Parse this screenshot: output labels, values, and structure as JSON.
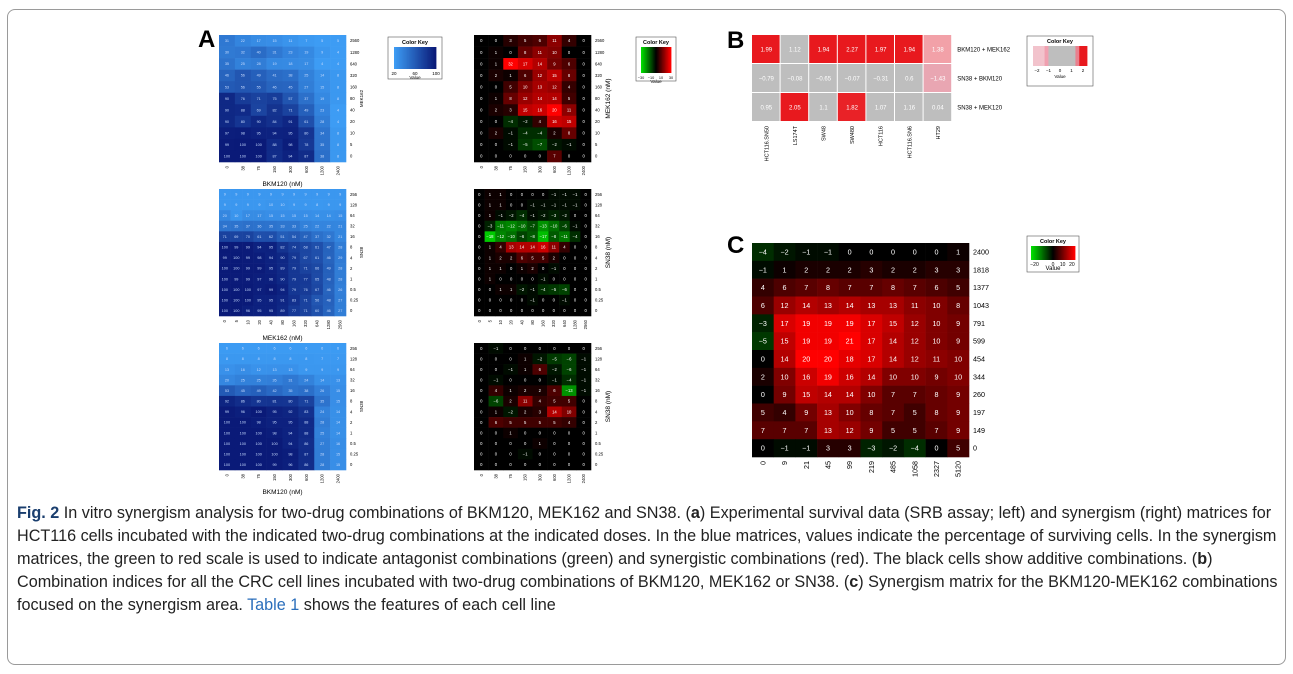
{
  "panels": {
    "A": "A",
    "B": "B",
    "C": "C"
  },
  "colors": {
    "blue_light": "#3d9cf4",
    "blue_dark": "#0a1a78",
    "red": "#ff0000",
    "green": "#00e000",
    "black": "#000000",
    "gray": "#bebebe",
    "pink": "#f0a0a8",
    "caption_label": "#1a3e6e",
    "link": "#2a6ebb"
  },
  "color_key_title": "Color Key",
  "value_label": "Value",
  "panelA": {
    "blue_key_ticks": [
      "20",
      "60",
      "100"
    ],
    "synergy_key_ticks": [
      "−30",
      "−10",
      "10",
      "30"
    ],
    "matrices": [
      {
        "survival_ylabel": "MEK162",
        "survival_xlabel": "BKM120 (nM)",
        "synergy_ylabel": "MEK162 (nM)",
        "synergy_xlabel": "",
        "row_labels": [
          "2560",
          "1280",
          "640",
          "320",
          "160",
          "80",
          "40",
          "20",
          "10",
          "5",
          "0"
        ],
        "col_labels": [
          "0",
          "38",
          "75",
          "150",
          "300",
          "600",
          "1200",
          "2400"
        ],
        "survival": [
          [
            31,
            22,
            17,
            15,
            11,
            7,
            5,
            5
          ],
          [
            30,
            32,
            40,
            31,
            23,
            19,
            9,
            4
          ],
          [
            35,
            25,
            28,
            19,
            18,
            17,
            4,
            4
          ],
          [
            46,
            56,
            49,
            41,
            38,
            25,
            14,
            8
          ],
          [
            53,
            56,
            55,
            46,
            45,
            27,
            15,
            8
          ],
          [
            90,
            76,
            71,
            75,
            57,
            37,
            19,
            8
          ],
          [
            90,
            88,
            69,
            82,
            71,
            49,
            23,
            4
          ],
          [
            90,
            80,
            90,
            84,
            91,
            61,
            28,
            4
          ],
          [
            97,
            98,
            95,
            94,
            95,
            80,
            34,
            8
          ],
          [
            99,
            100,
            100,
            88,
            98,
            78,
            35,
            8
          ],
          [
            100,
            100,
            100,
            87,
            94,
            87,
            38,
            8
          ]
        ],
        "synergy": [
          [
            0,
            0,
            3,
            5,
            6,
            11,
            4,
            0
          ],
          [
            0,
            1,
            0,
            8,
            11,
            10,
            0,
            0
          ],
          [
            0,
            1,
            32,
            17,
            14,
            9,
            6,
            0
          ],
          [
            0,
            2,
            1,
            6,
            12,
            15,
            8,
            0
          ],
          [
            0,
            0,
            5,
            10,
            13,
            12,
            4,
            0
          ],
          [
            0,
            1,
            8,
            12,
            14,
            14,
            5,
            0
          ],
          [
            0,
            2,
            3,
            15,
            16,
            20,
            11,
            0
          ],
          [
            0,
            0,
            -4,
            -2,
            4,
            16,
            15,
            0
          ],
          [
            0,
            2,
            -1,
            -4,
            -4,
            2,
            8,
            0
          ],
          [
            0,
            0,
            -1,
            -5,
            -7,
            -2,
            -1,
            0
          ],
          [
            0,
            0,
            0,
            0,
            0,
            7,
            0,
            0
          ]
        ]
      },
      {
        "survival_ylabel": "SN38",
        "survival_xlabel": "MEK162 (nM)",
        "synergy_ylabel": "SN38 (nM)",
        "synergy_xlabel": "",
        "row_labels": [
          "256",
          "128",
          "64",
          "32",
          "16",
          "8",
          "4",
          "2",
          "1",
          "0.5",
          "0.25",
          "0"
        ],
        "col_labels": [
          "0",
          "5",
          "10",
          "20",
          "40",
          "80",
          "160",
          "320",
          "640",
          "1280",
          "2560"
        ],
        "survival": [
          [
            9,
            9,
            9,
            9,
            9,
            9,
            9,
            9,
            9,
            9,
            9
          ],
          [
            9,
            9,
            9,
            9,
            10,
            10,
            9,
            9,
            8,
            9,
            9
          ],
          [
            20,
            10,
            17,
            17,
            15,
            15,
            15,
            15,
            14,
            14,
            15
          ],
          [
            34,
            35,
            37,
            36,
            35,
            33,
            33,
            25,
            22,
            22,
            21
          ],
          [
            71,
            69,
            70,
            61,
            62,
            51,
            54,
            47,
            37,
            32,
            21
          ],
          [
            100,
            99,
            99,
            94,
            95,
            82,
            74,
            68,
            61,
            47,
            28
          ],
          [
            99,
            100,
            99,
            98,
            94,
            90,
            79,
            67,
            61,
            46,
            29
          ],
          [
            100,
            100,
            99,
            99,
            95,
            89,
            79,
            71,
            66,
            49,
            28
          ],
          [
            100,
            99,
            99,
            97,
            96,
            90,
            79,
            77,
            65,
            48,
            28
          ],
          [
            100,
            100,
            100,
            97,
            99,
            94,
            79,
            76,
            67,
            46,
            26
          ],
          [
            100,
            100,
            100,
            95,
            95,
            91,
            83,
            71,
            56,
            48,
            27
          ],
          [
            100,
            100,
            96,
            95,
            95,
            89,
            77,
            71,
            60,
            46,
            27
          ]
        ],
        "synergy": [
          [
            0,
            1,
            1,
            0,
            0,
            0,
            0,
            -1,
            -1,
            -1,
            0
          ],
          [
            0,
            1,
            1,
            0,
            0,
            -1,
            -1,
            -1,
            -1,
            -1,
            0
          ],
          [
            0,
            1,
            -1,
            -2,
            -4,
            -1,
            -2,
            -3,
            -2,
            0,
            0
          ],
          [
            0,
            -3,
            -11,
            -12,
            -10,
            -7,
            -13,
            -10,
            -6,
            -1,
            0
          ],
          [
            0,
            -18,
            -12,
            -10,
            -6,
            -8,
            -17,
            -8,
            -11,
            -4,
            0
          ],
          [
            0,
            1,
            4,
            13,
            14,
            14,
            16,
            11,
            4,
            0,
            0
          ],
          [
            0,
            1,
            2,
            2,
            6,
            5,
            5,
            2,
            0,
            0,
            0
          ],
          [
            0,
            1,
            1,
            0,
            1,
            2,
            0,
            -1,
            0,
            0,
            0
          ],
          [
            0,
            1,
            0,
            0,
            0,
            0,
            -1,
            0,
            0,
            0,
            0
          ],
          [
            0,
            0,
            1,
            1,
            -2,
            -1,
            -4,
            -5,
            -6,
            0,
            0
          ],
          [
            0,
            0,
            0,
            0,
            0,
            -1,
            0,
            0,
            -1,
            0,
            0
          ],
          [
            0,
            0,
            0,
            0,
            0,
            0,
            0,
            0,
            0,
            0,
            0
          ]
        ]
      },
      {
        "survival_ylabel": "SN38",
        "survival_xlabel": "BKM120 (nM)",
        "synergy_ylabel": "SN38 (nM)",
        "synergy_xlabel": "",
        "row_labels": [
          "256",
          "128",
          "64",
          "32",
          "16",
          "8",
          "4",
          "2",
          "1",
          "0.5",
          "0.25",
          "0"
        ],
        "col_labels": [
          "0",
          "38",
          "75",
          "150",
          "300",
          "600",
          "1200",
          "2400"
        ],
        "survival": [
          [
            6,
            6,
            6,
            6,
            6,
            6,
            6,
            6
          ],
          [
            8,
            8,
            8,
            8,
            8,
            8,
            7,
            7
          ],
          [
            13,
            16,
            12,
            13,
            13,
            9,
            9,
            9
          ],
          [
            20,
            25,
            25,
            26,
            31,
            24,
            14,
            13
          ],
          [
            53,
            45,
            49,
            42,
            35,
            38,
            26,
            15
          ],
          [
            92,
            86,
            80,
            81,
            80,
            71,
            35,
            15
          ],
          [
            99,
            96,
            100,
            95,
            92,
            83,
            24,
            14
          ],
          [
            100,
            100,
            98,
            95,
            95,
            88,
            28,
            14
          ],
          [
            100,
            100,
            100,
            98,
            94,
            88,
            25,
            14
          ],
          [
            100,
            100,
            100,
            100,
            94,
            86,
            27,
            16
          ],
          [
            100,
            100,
            100,
            100,
            98,
            87,
            28,
            15
          ],
          [
            100,
            100,
            100,
            99,
            96,
            86,
            28,
            15
          ]
        ],
        "synergy": [
          [
            0,
            -1,
            0,
            0,
            0,
            0,
            0,
            0
          ],
          [
            0,
            0,
            0,
            1,
            -2,
            -5,
            -6,
            -1
          ],
          [
            0,
            0,
            -1,
            1,
            6,
            -2,
            -6,
            -1
          ],
          [
            0,
            -1,
            0,
            0,
            0,
            -1,
            -4,
            -1
          ],
          [
            0,
            4,
            1,
            2,
            2,
            6,
            -13,
            -1
          ],
          [
            0,
            -6,
            2,
            11,
            4,
            5,
            5,
            0
          ],
          [
            0,
            1,
            -2,
            2,
            3,
            14,
            10,
            0
          ],
          [
            0,
            6,
            5,
            5,
            5,
            5,
            4,
            0
          ],
          [
            0,
            0,
            1,
            0,
            0,
            0,
            0,
            0
          ],
          [
            0,
            0,
            0,
            0,
            1,
            0,
            0,
            0
          ],
          [
            0,
            0,
            0,
            -1,
            0,
            0,
            0,
            0
          ],
          [
            0,
            0,
            0,
            0,
            0,
            0,
            0,
            0
          ]
        ]
      }
    ]
  },
  "panelB": {
    "rows": [
      "BKM120 + MEK162",
      "SN38 + BKM120",
      "SN38 + MEK120"
    ],
    "cols": [
      "HCT116.SN50",
      "LS174T",
      "SW48",
      "SW480",
      "HCT116",
      "HCT116.SN6",
      "HT29"
    ],
    "values": [
      [
        1.99,
        1.12,
        1.94,
        2.27,
        1.97,
        1.94,
        1.38
      ],
      [
        -0.79,
        -0.08,
        -0.65,
        -0.07,
        -0.31,
        0.6,
        -1.43
      ],
      [
        0.95,
        2.05,
        1.1,
        1.82,
        1.07,
        1.16,
        0.04
      ]
    ],
    "display": [
      [
        "1.99",
        "1.12",
        "1.94",
        "2.27",
        "1.97",
        "1.94",
        "1.38"
      ],
      [
        "−0.79",
        "−0.08",
        "−0.65",
        "−0.07",
        "−0.31",
        "0.6",
        "−1.43"
      ],
      [
        "0.95",
        "2.05",
        "1.1",
        "1.82",
        "1.07",
        "1.16",
        "0.04"
      ]
    ],
    "key_ticks": [
      "−2",
      "−1",
      "0",
      "1",
      "2"
    ]
  },
  "panelC": {
    "row_labels": [
      "2400",
      "1818",
      "1377",
      "1043",
      "791",
      "599",
      "454",
      "344",
      "260",
      "197",
      "149",
      "0"
    ],
    "col_labels": [
      "0",
      "9",
      "21",
      "45",
      "99",
      "219",
      "485",
      "1058",
      "2327",
      "5120"
    ],
    "values": [
      [
        -4,
        -2,
        -1,
        -1,
        0,
        0,
        0,
        0,
        0,
        1
      ],
      [
        -1,
        1,
        2,
        2,
        2,
        3,
        2,
        2,
        3,
        3
      ],
      [
        4,
        6,
        7,
        8,
        7,
        7,
        8,
        7,
        6,
        5
      ],
      [
        6,
        12,
        14,
        13,
        14,
        13,
        13,
        11,
        10,
        8
      ],
      [
        -3,
        17,
        19,
        19,
        19,
        17,
        15,
        12,
        10,
        9
      ],
      [
        -5,
        15,
        19,
        19,
        21,
        17,
        14,
        12,
        10,
        9
      ],
      [
        0,
        14,
        20,
        20,
        18,
        17,
        14,
        12,
        11,
        10
      ],
      [
        2,
        10,
        16,
        19,
        16,
        14,
        10,
        10,
        9,
        10
      ],
      [
        0,
        9,
        15,
        14,
        14,
        10,
        7,
        7,
        8,
        9
      ],
      [
        5,
        4,
        9,
        13,
        10,
        8,
        7,
        5,
        8,
        9
      ],
      [
        7,
        7,
        7,
        13,
        12,
        9,
        5,
        5,
        7,
        9
      ],
      [
        0,
        -1,
        -1,
        3,
        3,
        -3,
        -2,
        -4,
        0,
        5
      ]
    ],
    "key_ticks": [
      "−20",
      "0",
      "10",
      "20"
    ]
  },
  "caption": {
    "fig_label": "Fig. 2",
    "s1": " In vitro synergism analysis for two-drug combinations of BKM120, MEK162 and SN38. (",
    "a": "a",
    "s2": ") Experimental survival data (SRB assay; left) and synergism (right) matrices for HCT116 cells incubated with the indicated two-drug combinations at the indicated doses. In the blue matrices, values indicate the percentage of surviving cells. In the synergism matrices, the green to red scale is used to indicate antagonist combinations (green) and synergistic combinations (red). The black cells show additive combinations. (",
    "b": "b",
    "s3": ") Combination indices for all the CRC cell lines incubated with two-drug combinations of BKM120, MEK162 or SN38. (",
    "c": "c",
    "s4": ") Synergism matrix for the BKM120-MEK162 combinations focused on the synergism area. ",
    "table_link": "Table 1",
    "s5": " shows the features of each cell line"
  }
}
